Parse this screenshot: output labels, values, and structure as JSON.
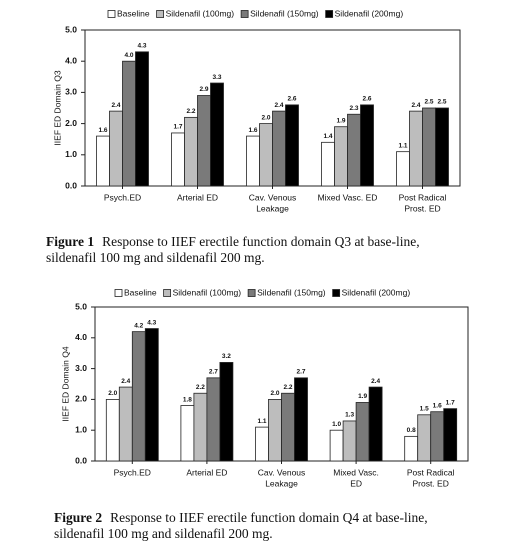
{
  "chart_data": [
    {
      "type": "bar",
      "ylabel": "IIEF ED Domain Q3",
      "categories": [
        [
          "Psych.ED"
        ],
        [
          "Arterial ED"
        ],
        [
          "Cav. Venous",
          "Leakage"
        ],
        [
          "Mixed Vasc. ED"
        ],
        [
          "Post Radical",
          "Prost. ED"
        ]
      ],
      "series": [
        {
          "name": "Baseline",
          "color": "#ffffff",
          "values": [
            1.6,
            1.7,
            1.6,
            1.4,
            1.1
          ],
          "value_labels": [
            "1.6",
            "1.7",
            "1.6",
            "1.4",
            "1.1"
          ]
        },
        {
          "name": "Sildenafil (100mg)",
          "color": "#bdbdbd",
          "values": [
            2.4,
            2.2,
            2.0,
            1.9,
            2.4
          ],
          "value_labels": [
            "2.4",
            "2.2",
            "2.0",
            "1.9",
            "2.4"
          ]
        },
        {
          "name": "Sildenafil (150mg)",
          "color": "#7a7a7a",
          "values": [
            4.0,
            2.9,
            2.4,
            2.3,
            2.5
          ],
          "value_labels": [
            "4.0",
            "2.9",
            "2.4",
            "2.3",
            "2.5"
          ]
        },
        {
          "name": "Sildenafil (200mg)",
          "color": "#000000",
          "values": [
            4.3,
            3.3,
            2.6,
            2.6,
            2.5
          ],
          "value_labels": [
            "4.3",
            "3.3",
            "2.6",
            "2.6",
            "2.5"
          ]
        }
      ],
      "ylim": [
        0,
        5
      ],
      "yticks": [
        {
          "value": 0,
          "label": "0.0"
        },
        {
          "value": 1,
          "label": "1.0"
        },
        {
          "value": 2,
          "label": "2.0"
        },
        {
          "value": 3,
          "label": "3.0"
        },
        {
          "value": 4,
          "label": "4.0"
        },
        {
          "value": 5,
          "label": "5.0"
        }
      ],
      "legend": "top",
      "caption_label": "Figure 1",
      "caption": "Response to IIEF erectile function domain Q3 at base-line, sildenafil 100 mg and sildenafil 200 mg."
    },
    {
      "type": "bar",
      "ylabel": "IIEF ED Domain Q4",
      "categories": [
        [
          "Psych.ED"
        ],
        [
          "Arterial ED"
        ],
        [
          "Cav. Venous",
          "Leakage"
        ],
        [
          "Mixed Vasc.",
          "ED"
        ],
        [
          "Post Radical",
          "Prost. ED"
        ]
      ],
      "series": [
        {
          "name": "Baseline",
          "color": "#ffffff",
          "values": [
            2.0,
            1.8,
            1.1,
            1.0,
            0.8
          ],
          "value_labels": [
            "2.0",
            "1.8",
            "1.1",
            "1.0",
            "0.8"
          ]
        },
        {
          "name": "Sildenafil (100mg)",
          "color": "#bdbdbd",
          "values": [
            2.4,
            2.2,
            2.0,
            1.3,
            1.5
          ],
          "value_labels": [
            "2.4",
            "2.2",
            "2.0",
            "1.3",
            "1.5"
          ]
        },
        {
          "name": "Sildenafil (150mg)",
          "color": "#7a7a7a",
          "values": [
            4.2,
            2.7,
            2.2,
            1.9,
            1.6
          ],
          "value_labels": [
            "4.2",
            "2.7",
            "2.2",
            "1.9",
            "1.6"
          ]
        },
        {
          "name": "Sildenafil (200mg)",
          "color": "#000000",
          "values": [
            4.3,
            3.2,
            2.7,
            2.4,
            1.7
          ],
          "value_labels": [
            "4.3",
            "3.2",
            "2.7",
            "2.4",
            "1.7"
          ]
        }
      ],
      "ylim": [
        0,
        5
      ],
      "yticks": [
        {
          "value": 0,
          "label": "0.0"
        },
        {
          "value": 1,
          "label": "1.0"
        },
        {
          "value": 2,
          "label": "2.0"
        },
        {
          "value": 3,
          "label": "3.0"
        },
        {
          "value": 4,
          "label": "4.0"
        },
        {
          "value": 5,
          "label": "5.0"
        }
      ],
      "legend": "top",
      "caption_label": "Figure 2",
      "caption": "Response to IIEF erectile function domain Q4 at base-line, sildenafil 100 mg and sildenafil 200 mg."
    }
  ]
}
